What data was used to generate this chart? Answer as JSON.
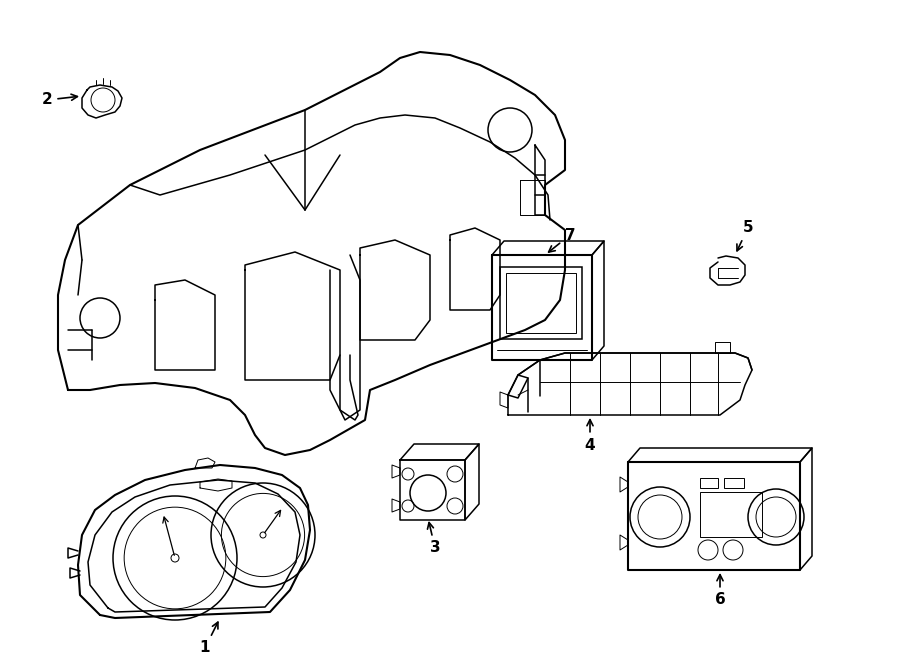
{
  "bg_color": "#ffffff",
  "line_color": "#000000",
  "lw": 1.1,
  "lw_thick": 1.5,
  "lw_thin": 0.7,
  "fig_width": 9.0,
  "fig_height": 6.61,
  "dpi": 100,
  "label_fontsize": 11
}
